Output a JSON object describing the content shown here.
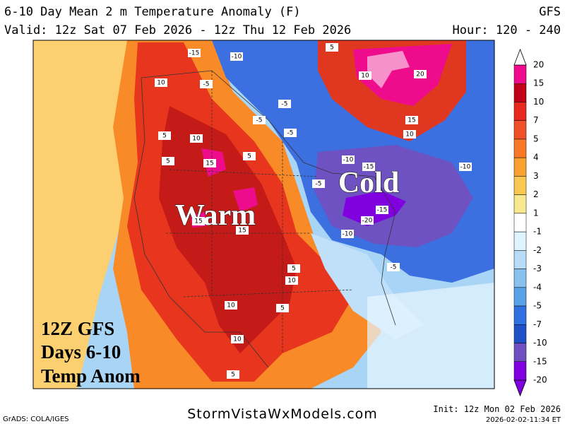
{
  "header": {
    "title": "6-10 Day Mean 2 m Temperature Anomaly (F)",
    "model": "GFS",
    "valid": "Valid: 12z Sat 07 Feb 2026 - 12z Thu 12 Feb 2026",
    "hour": "Hour: 120 - 240"
  },
  "map": {
    "warm_label": "Warm",
    "cold_label": "Cold",
    "notes": [
      "12Z GFS",
      "Days 6-10",
      "Temp Anom"
    ],
    "contour_labels": [
      -15,
      -10,
      5,
      10,
      20,
      10,
      -5,
      -5,
      -5,
      -5,
      15,
      10,
      5,
      10,
      5,
      15,
      5,
      -10,
      -15,
      -10,
      -5,
      -15,
      -20,
      -10,
      15,
      15,
      -5,
      5,
      10,
      10,
      5,
      10,
      5
    ]
  },
  "legend": {
    "labels": [
      20,
      15,
      10,
      7,
      5,
      4,
      3,
      2,
      1,
      -1,
      -2,
      -3,
      -4,
      -5,
      -7,
      -10,
      -15,
      -20
    ],
    "colors": [
      "#f00a8c",
      "#c00018",
      "#e6281e",
      "#f05028",
      "#f87828",
      "#f8a030",
      "#f8c850",
      "#f8e890",
      "#ffffff",
      "#e0f4ff",
      "#b8dcf8",
      "#88c0f0",
      "#58a0e8",
      "#3070e0",
      "#2050c8",
      "#7050c0",
      "#8000e0"
    ]
  },
  "footer": {
    "credit": "GrADS: COLA/IGES",
    "site": "StormVistaWxModels.com",
    "init": "Init: 12z Mon 02 Feb 2026",
    "timestamp": "2026-02-02-11:34 ET"
  }
}
